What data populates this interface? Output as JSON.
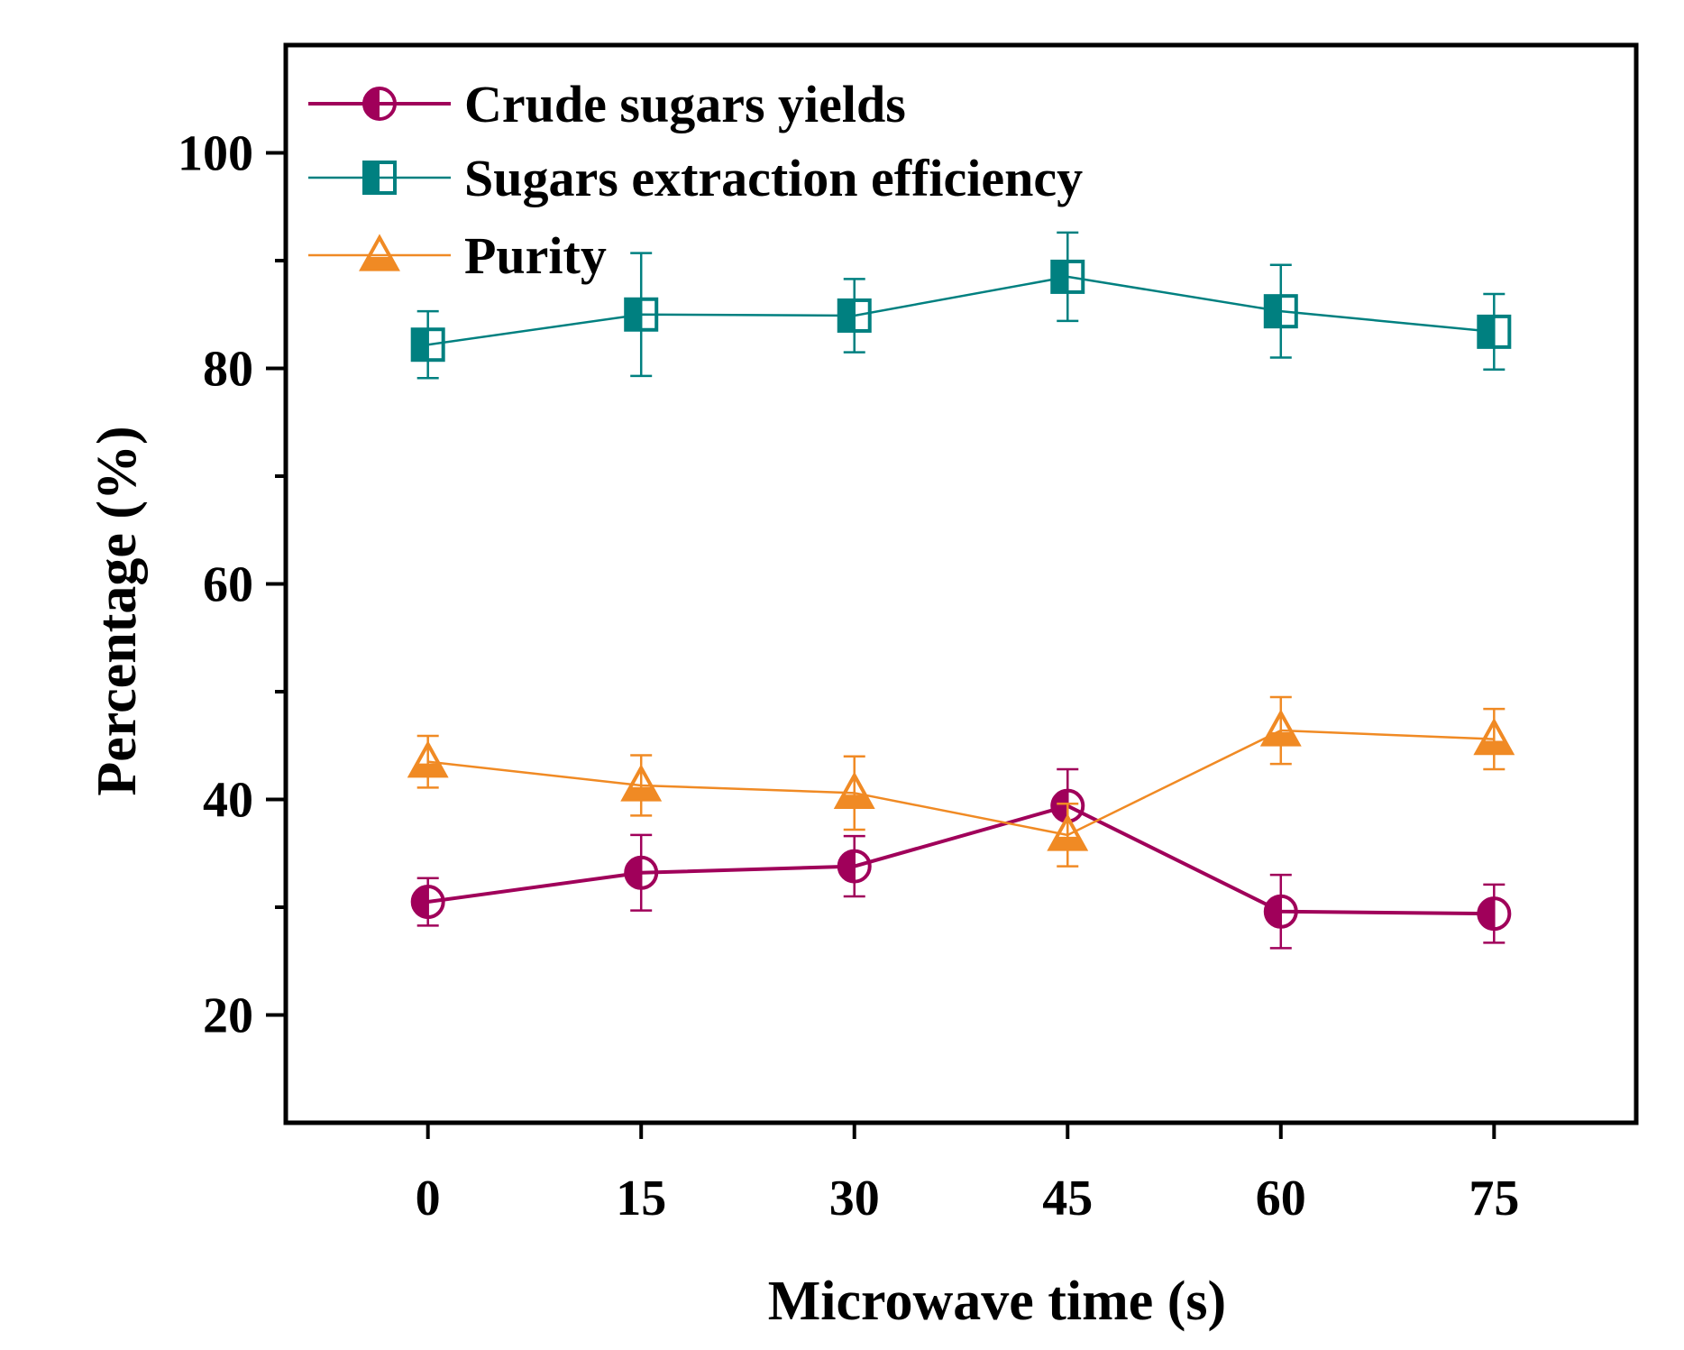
{
  "chart_data": {
    "type": "line",
    "title": "",
    "xlabel": "Microwave time (s)",
    "ylabel": "Percentage (%)",
    "x": [
      0,
      15,
      30,
      45,
      60,
      75
    ],
    "xticks": [
      "0",
      "15",
      "30",
      "45",
      "60",
      "75"
    ],
    "xlim": [
      -10,
      85
    ],
    "ylim": [
      10,
      110
    ],
    "yticks": [
      "20",
      "40",
      "60",
      "80",
      "100"
    ],
    "ytick_values": [
      20,
      40,
      60,
      80,
      100
    ],
    "grid": false,
    "legend_position": "top-left",
    "series": [
      {
        "name": "Crude sugars yields",
        "color": "#a0005a",
        "marker": "circle-half-left",
        "values": [
          30.5,
          33.2,
          33.8,
          39.4,
          29.6,
          29.4
        ],
        "errors": [
          2.2,
          3.5,
          2.8,
          3.4,
          3.4,
          2.7
        ]
      },
      {
        "name": "Sugars extraction efficiency",
        "color": "#008080",
        "marker": "square-half-left",
        "values": [
          82.2,
          85.0,
          84.9,
          88.5,
          85.3,
          83.4
        ],
        "errors": [
          3.1,
          5.7,
          3.4,
          4.1,
          4.3,
          3.5
        ]
      },
      {
        "name": "Purity",
        "color": "#f08a24",
        "marker": "triangle-half-bottom",
        "values": [
          43.5,
          41.3,
          40.6,
          36.7,
          46.4,
          45.6
        ],
        "errors": [
          2.4,
          2.8,
          3.4,
          2.9,
          3.1,
          2.8
        ]
      }
    ]
  }
}
